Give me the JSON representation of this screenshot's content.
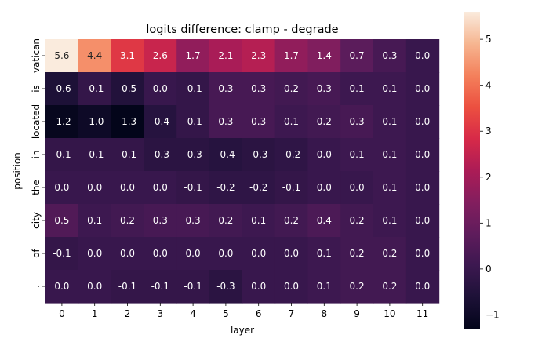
{
  "chart_data": {
    "type": "heatmap",
    "title": "logits difference: clamp - degrade",
    "xlabel": "layer",
    "ylabel": "position",
    "x_categories": [
      "0",
      "1",
      "2",
      "3",
      "4",
      "5",
      "6",
      "7",
      "8",
      "9",
      "10",
      "11"
    ],
    "y_categories": [
      "vatican",
      "is",
      "located",
      "in",
      "the",
      "city",
      "of",
      "."
    ],
    "values": [
      [
        5.6,
        4.4,
        3.1,
        2.6,
        1.7,
        2.1,
        2.3,
        1.7,
        1.4,
        0.7,
        0.3,
        0.0
      ],
      [
        -0.6,
        -0.1,
        -0.5,
        0.0,
        -0.1,
        0.3,
        0.3,
        0.2,
        0.3,
        0.1,
        0.1,
        0.0
      ],
      [
        -1.2,
        -1.0,
        -1.3,
        -0.4,
        -0.1,
        0.3,
        0.3,
        0.1,
        0.2,
        0.3,
        0.1,
        0.0
      ],
      [
        -0.1,
        -0.1,
        -0.1,
        -0.3,
        -0.3,
        -0.4,
        -0.3,
        -0.2,
        0.0,
        0.1,
        0.1,
        0.0
      ],
      [
        -0.0,
        0.0,
        -0.0,
        -0.0,
        -0.1,
        -0.2,
        -0.2,
        -0.1,
        0.0,
        0.0,
        0.1,
        0.0
      ],
      [
        0.5,
        0.1,
        0.2,
        0.3,
        0.3,
        0.2,
        0.1,
        0.2,
        0.4,
        0.2,
        0.1,
        0.0
      ],
      [
        -0.1,
        -0.0,
        -0.0,
        -0.0,
        0.0,
        -0.0,
        -0.0,
        0.0,
        0.1,
        0.2,
        0.2,
        0.0
      ],
      [
        -0.0,
        -0.0,
        -0.1,
        -0.1,
        -0.1,
        -0.3,
        -0.0,
        -0.0,
        0.1,
        0.2,
        0.2,
        0.0
      ]
    ],
    "colorbar": {
      "vmin": -1.3,
      "vmax": 5.6,
      "ticks": [
        -1,
        0,
        1,
        2,
        3,
        4,
        5
      ],
      "colormap": "rocket"
    },
    "annotation_colors": {
      "light": "#ffffff",
      "dark": "#262626"
    }
  }
}
